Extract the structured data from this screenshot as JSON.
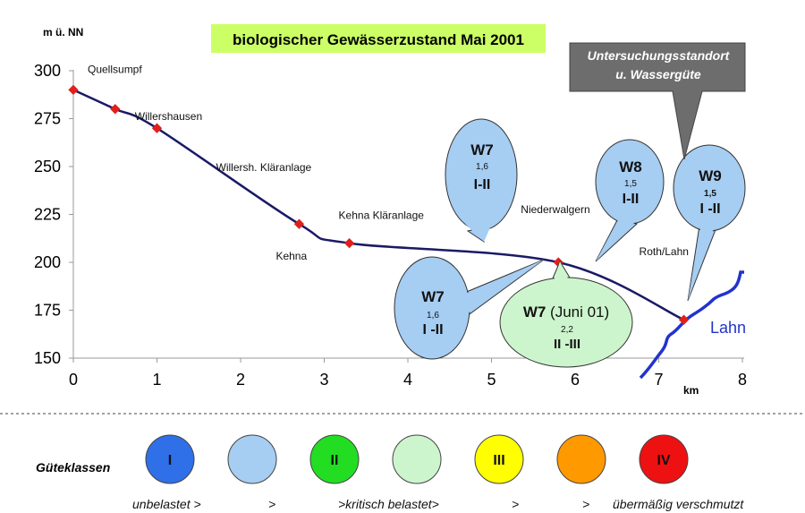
{
  "chart_data": {
    "type": "line",
    "title": "biologischer Gewässerzustand Mai 2001",
    "ylabel": "m ü. NN",
    "xlabel": "km",
    "xlim": [
      0,
      8
    ],
    "ylim": [
      150,
      300
    ],
    "x_ticks": [
      "0",
      "1",
      "2",
      "3",
      "4",
      "5",
      "6",
      "7",
      "8"
    ],
    "y_ticks": [
      "150",
      "175",
      "200",
      "225",
      "250",
      "275",
      "300"
    ],
    "grid": false,
    "series": [
      {
        "points": [
          {
            "x": 0,
            "y": 290,
            "label": "Quellsumpf"
          },
          {
            "x": 0.5,
            "y": 280,
            "label": "Willershausen"
          },
          {
            "x": 1.0,
            "y": 270,
            "label": "Willersh. Kläranlage"
          },
          {
            "x": 2.7,
            "y": 220,
            "label": "Kehna"
          },
          {
            "x": 3.3,
            "y": 210,
            "label": "Kehna Kläranlage"
          },
          {
            "x": 5.8,
            "y": 200,
            "label": "Niederwalgern"
          },
          {
            "x": 7.3,
            "y": 170,
            "label": "Roth/Lahn"
          }
        ]
      }
    ],
    "river_label": "Lahn",
    "colors": {
      "line": "#1a1a66",
      "marker": "#e0201c",
      "river": "#2233cc"
    }
  },
  "callouts": {
    "title_box": {
      "text": "biologischer Gewässerzustand Mai 2001",
      "color": "#ccff66"
    },
    "standort": {
      "line1": "Untersuchungsstandort",
      "line2": "u. Wassergüte",
      "color": "#6d6d6d"
    },
    "bubbles": [
      {
        "id": "w7_top",
        "name": "W7",
        "index": "1,6",
        "klasse": "I-II",
        "color": "#a6cdf2"
      },
      {
        "id": "w7_bottom",
        "name": "W7",
        "index": "1,6",
        "klasse": "I -II",
        "color": "#a6cdf2"
      },
      {
        "id": "w7_juni",
        "name": "W7",
        "suffix": " (Juni 01)",
        "index": "2,2",
        "klasse": "II -III",
        "color": "#cdf5cd"
      },
      {
        "id": "w8",
        "name": "W8",
        "index": "1,5",
        "klasse": "I-II",
        "color": "#a6cdf2"
      },
      {
        "id": "w9",
        "name": "W9",
        "index": "1,5",
        "klasse": "I -II",
        "color": "#a6cdf2"
      }
    ]
  },
  "legend": {
    "title": "Güteklassen",
    "classes": [
      {
        "label": "I",
        "color": "#2f6fe8"
      },
      {
        "label": "",
        "color": "#a6cdf2"
      },
      {
        "label": "II",
        "color": "#22dd22"
      },
      {
        "label": "",
        "color": "#cdf5cd"
      },
      {
        "label": "III",
        "color": "#ffff00"
      },
      {
        "label": "",
        "color": "#ff9900"
      },
      {
        "label": "IV",
        "color": "#ee1111"
      }
    ],
    "scale": [
      "unbelastet >",
      ">",
      ">kritisch belastet>",
      ">",
      ">",
      "übermäßig verschmutzt"
    ]
  }
}
